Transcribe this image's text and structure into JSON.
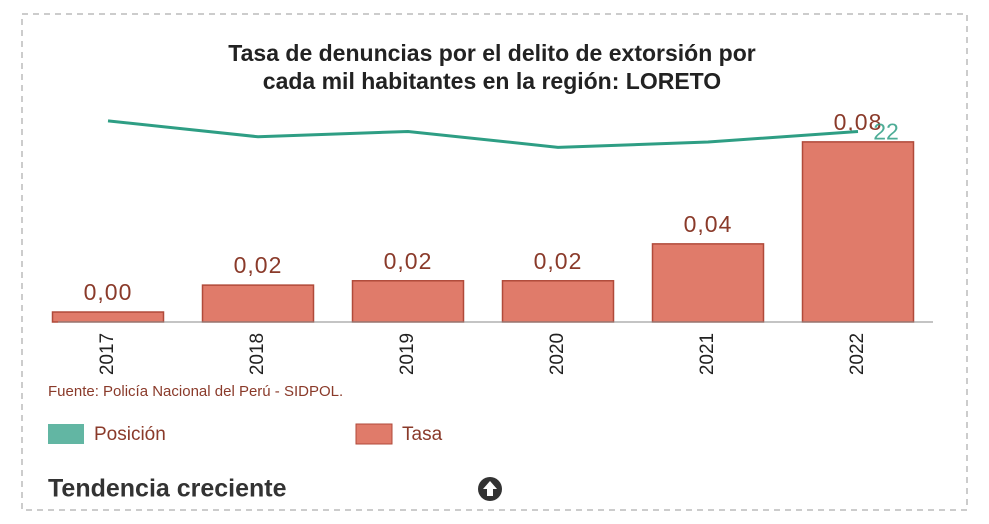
{
  "chart_data": {
    "type": "bar",
    "title": [
      "Tasa de denuncias por el delito de extorsión por",
      "cada mil habitantes en la región: LORETO"
    ],
    "categories": [
      "2017",
      "2018",
      "2019",
      "2020",
      "2021",
      "2022"
    ],
    "series": [
      {
        "name": "Posición",
        "type": "line",
        "axis": "y2",
        "color": "#2e9e84",
        "values": [
          20,
          23,
          22,
          25,
          24,
          22
        ]
      },
      {
        "name": "Tasa",
        "type": "bar",
        "color": "#e07b6a",
        "values": [
          0.0046,
          0.017,
          0.019,
          0.019,
          0.036,
          0.083
        ],
        "value_labels": [
          "0,00",
          "0,02",
          "0,02",
          "0,02",
          "0,04",
          "0,08"
        ]
      }
    ],
    "ylim": [
      0,
      0.1
    ],
    "y2lim": [
      58,
      17
    ],
    "source": "Fuente: Policía Nacional del Perú - SIDPOL.",
    "trend": "Tendencia creciente"
  }
}
